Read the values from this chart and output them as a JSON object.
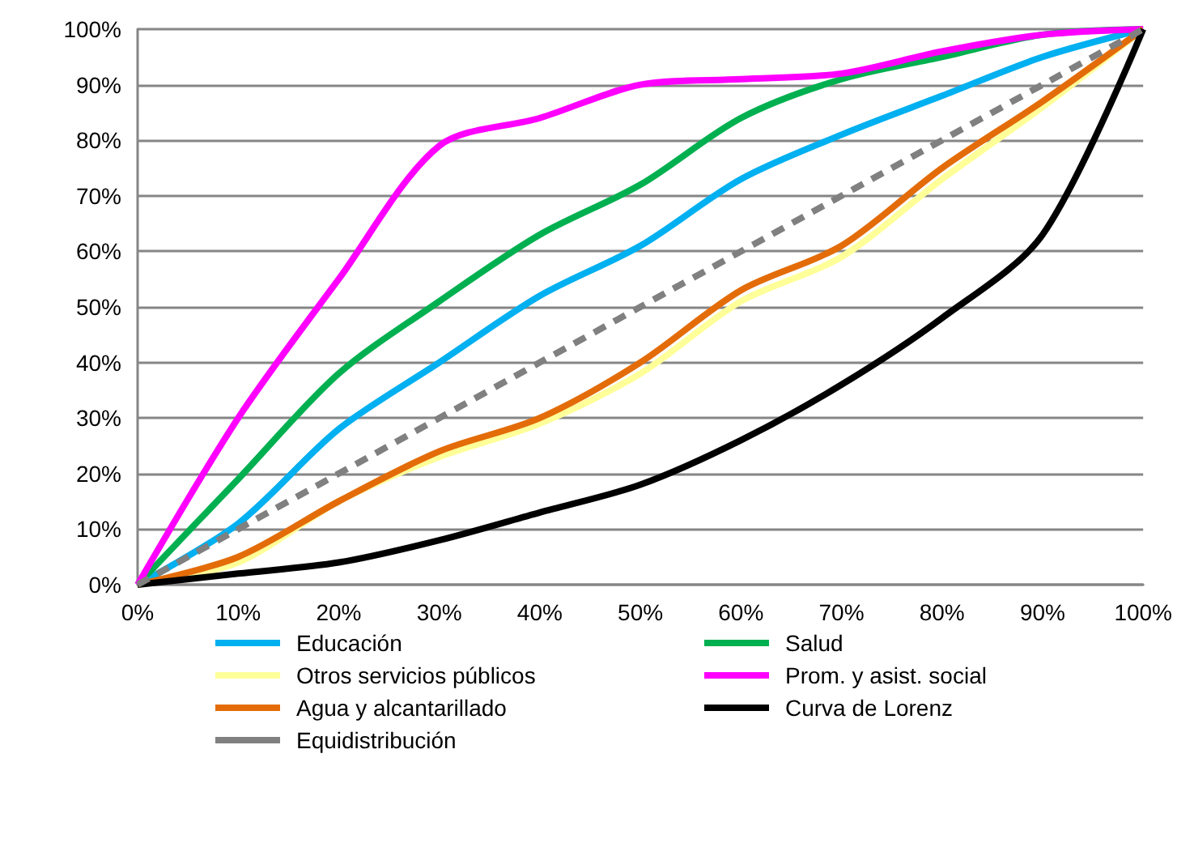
{
  "chart_data": {
    "type": "line",
    "x": [
      0,
      10,
      20,
      30,
      40,
      50,
      60,
      70,
      80,
      90,
      100
    ],
    "xlim": [
      0,
      100
    ],
    "xticks": [
      {
        "value": 0,
        "label": "0%"
      },
      {
        "value": 10,
        "label": "10%"
      },
      {
        "value": 20,
        "label": "20%"
      },
      {
        "value": 30,
        "label": "30%"
      },
      {
        "value": 40,
        "label": "40%"
      },
      {
        "value": 50,
        "label": "50%"
      },
      {
        "value": 60,
        "label": "60%"
      },
      {
        "value": 70,
        "label": "70%"
      },
      {
        "value": 80,
        "label": "80%"
      },
      {
        "value": 90,
        "label": "90%"
      },
      {
        "value": 100,
        "label": "100%"
      }
    ],
    "ylim": [
      0,
      100
    ],
    "yticks": [
      {
        "value": 0,
        "label": "0%"
      },
      {
        "value": 10,
        "label": "10%"
      },
      {
        "value": 20,
        "label": "20%"
      },
      {
        "value": 30,
        "label": "30%"
      },
      {
        "value": 40,
        "label": "40%"
      },
      {
        "value": 50,
        "label": "50%"
      },
      {
        "value": 60,
        "label": "60%"
      },
      {
        "value": 70,
        "label": "70%"
      },
      {
        "value": 80,
        "label": "80%"
      },
      {
        "value": 90,
        "label": "90%"
      },
      {
        "value": 100,
        "label": "100%"
      }
    ],
    "grid": "y",
    "legend": "bottom",
    "marker": "none",
    "line_style": "solid",
    "series": [
      {
        "name": "Educación",
        "color": "#00b0f0",
        "values": [
          0,
          11,
          28,
          40,
          52,
          61,
          73,
          81,
          88,
          95,
          100
        ]
      },
      {
        "name": "Salud",
        "color": "#00b050",
        "values": [
          0,
          19,
          38,
          51,
          63,
          72,
          84,
          91,
          95,
          99,
          100
        ]
      },
      {
        "name": "Otros servicios públicos",
        "color": "#ffff99",
        "values": [
          0,
          4,
          15,
          23,
          29,
          38,
          51,
          59,
          73,
          86,
          100
        ]
      },
      {
        "name": "Prom. y asist. social",
        "color": "#ff00ff",
        "values": [
          0,
          30,
          55,
          79,
          84,
          90,
          91,
          92,
          96,
          99,
          100
        ]
      },
      {
        "name": "Agua y alcantarillado",
        "color": "#e36c09",
        "values": [
          0,
          5,
          15,
          24,
          30,
          40,
          53,
          61,
          75,
          87,
          100
        ]
      },
      {
        "name": "Curva de Lorenz",
        "color": "#000000",
        "values": [
          0,
          2,
          4,
          8,
          13,
          18,
          26,
          36,
          48,
          63,
          100
        ]
      },
      {
        "name": "Equidistribución",
        "color": "#808080",
        "line_style": "dashed",
        "values": [
          0,
          10,
          20,
          30,
          40,
          50,
          60,
          70,
          80,
          90,
          100
        ]
      }
    ]
  }
}
